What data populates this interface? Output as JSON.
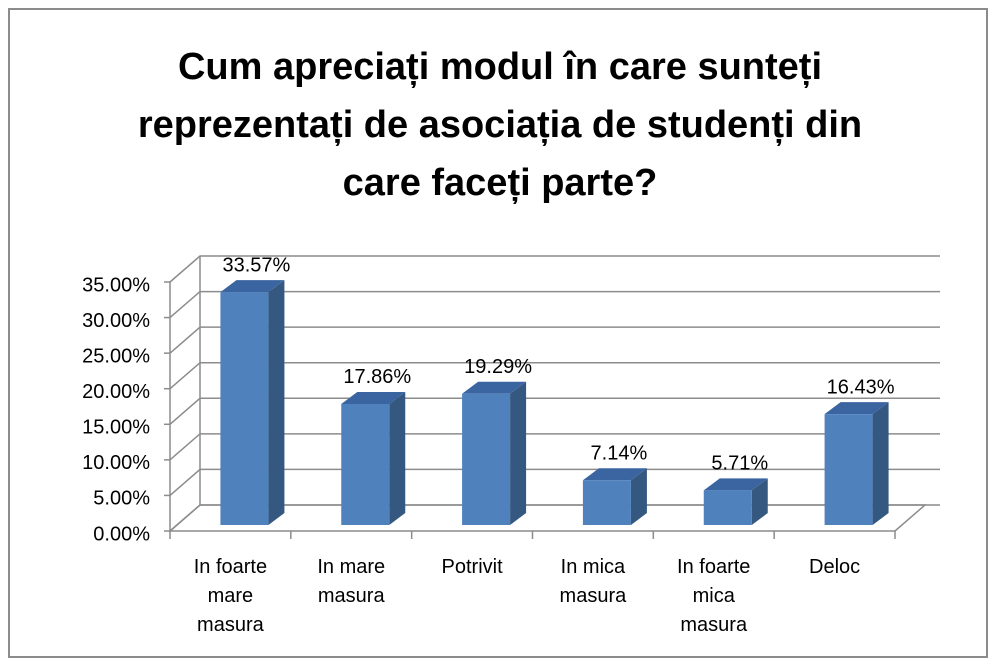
{
  "chart_data": {
    "type": "bar",
    "title": "Cum apreciați modul în care sunteți reprezentați de asociația de studenți din care faceți parte?",
    "categories": [
      "In foarte mare masura",
      "In mare masura",
      "Potrivit",
      "In mica masura",
      "In foarte mica masura",
      "Deloc"
    ],
    "values": [
      33.57,
      17.86,
      19.29,
      7.14,
      5.71,
      16.43
    ],
    "value_labels": [
      "33.57%",
      "17.86%",
      "19.29%",
      "7.14%",
      "5.71%",
      "16.43%"
    ],
    "color": "#4f81bd",
    "ylim": [
      0,
      35
    ],
    "yticks": [
      {
        "value": 0,
        "label": "0.00%"
      },
      {
        "value": 5,
        "label": "5.00%"
      },
      {
        "value": 10,
        "label": "10.00%"
      },
      {
        "value": 15,
        "label": "15.00%"
      },
      {
        "value": 20,
        "label": "20.00%"
      },
      {
        "value": 25,
        "label": "25.00%"
      },
      {
        "value": 30,
        "label": "30.00%"
      },
      {
        "value": 35,
        "label": "35.00%"
      }
    ],
    "grid": true
  }
}
